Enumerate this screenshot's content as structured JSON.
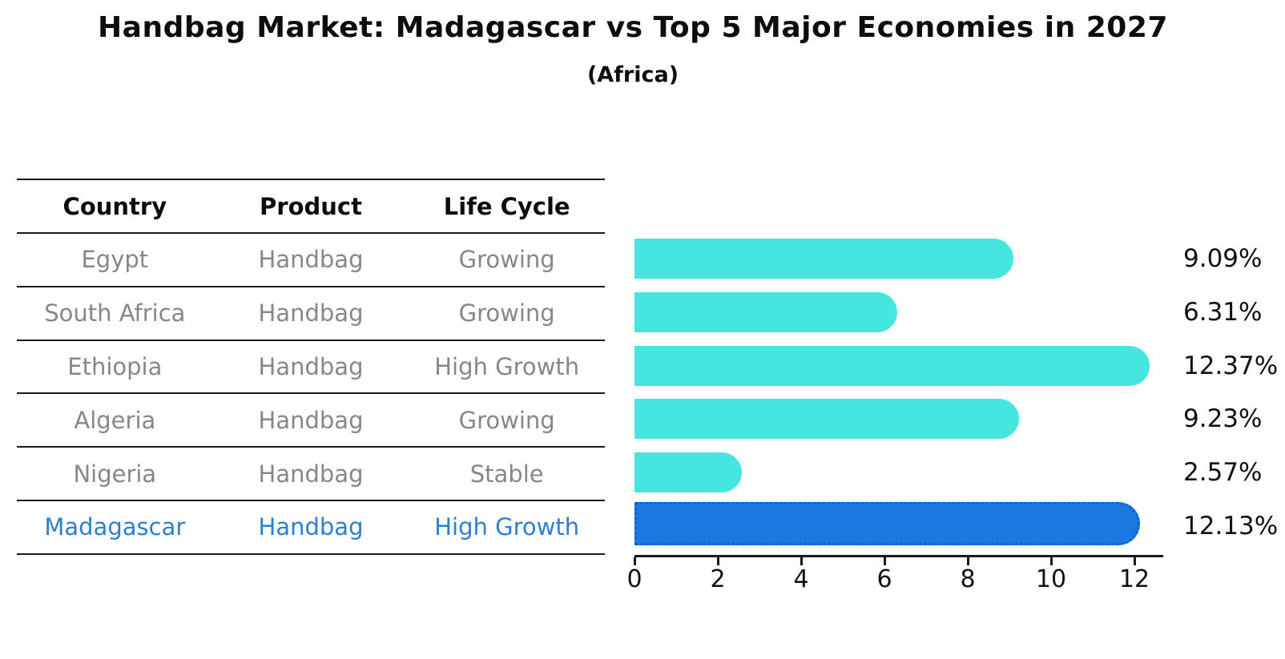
{
  "title": "Handbag Market: Madagascar vs Top 5 Major Economies in 2027",
  "subtitle": "(Africa)",
  "table": {
    "headers": [
      "Country",
      "Product",
      "Life Cycle"
    ],
    "rows": [
      {
        "country": "Egypt",
        "product": "Handbag",
        "life_cycle": "Growing"
      },
      {
        "country": "South Africa",
        "product": "Handbag",
        "life_cycle": "Growing"
      },
      {
        "country": "Ethiopia",
        "product": "Handbag",
        "life_cycle": "High Growth"
      },
      {
        "country": "Algeria",
        "product": "Handbag",
        "life_cycle": "Growing"
      },
      {
        "country": "Nigeria",
        "product": "Handbag",
        "life_cycle": "Stable"
      },
      {
        "country": "Madagascar",
        "product": "Handbag",
        "life_cycle": "High Growth"
      }
    ],
    "highlighted_row": "Madagascar"
  },
  "chart_data": {
    "type": "bar",
    "orientation": "horizontal",
    "categories": [
      "Egypt",
      "South Africa",
      "Ethiopia",
      "Algeria",
      "Nigeria",
      "Madagascar"
    ],
    "values": [
      9.09,
      6.31,
      12.37,
      9.23,
      2.57,
      12.13
    ],
    "labels": [
      "9.09%",
      "6.31%",
      "12.37%",
      "9.23%",
      "2.57%",
      "12.13%"
    ],
    "x_ticks": [
      "0",
      "2",
      "4",
      "6",
      "8",
      "10",
      "12"
    ],
    "xlim": [
      0,
      12.7
    ],
    "grid": false,
    "legend": "none",
    "bar_color": "#46e5e0",
    "highlight_color": "#1c78e1",
    "highlight_index": 5,
    "highlight_text_color": "#2e80ce",
    "row_text_color": "#878787",
    "title": "Handbag Market: Madagascar vs Top 5 Major Economies in 2027",
    "subtitle": "(Africa)"
  }
}
